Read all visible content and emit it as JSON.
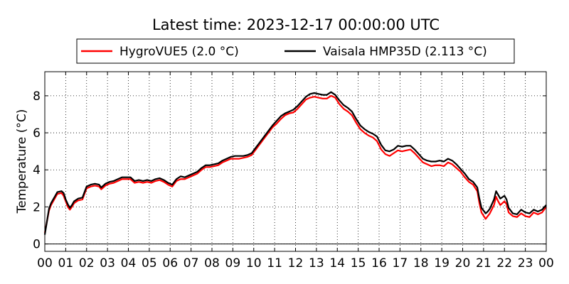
{
  "chart_data": {
    "type": "line",
    "title": "Latest time: 2023-12-17 00:00:00 UTC",
    "xlabel": "",
    "ylabel": "Temperature (°C)",
    "xlim": [
      0,
      24
    ],
    "ylim": [
      -0.4,
      9.3
    ],
    "grid": true,
    "legend_position": "top",
    "x_ticks": [
      "00",
      "01",
      "02",
      "03",
      "04",
      "05",
      "06",
      "07",
      "08",
      "09",
      "10",
      "11",
      "12",
      "13",
      "14",
      "15",
      "16",
      "17",
      "18",
      "19",
      "20",
      "21",
      "22",
      "23",
      "00"
    ],
    "y_ticks": [
      0,
      2,
      4,
      6,
      8
    ],
    "series": [
      {
        "name": "HygroVUE5 (2.0 °C)",
        "color": "#ff0000",
        "points": [
          [
            0.0,
            0.6
          ],
          [
            0.1,
            1.2
          ],
          [
            0.2,
            1.8
          ],
          [
            0.3,
            2.1
          ],
          [
            0.4,
            2.3
          ],
          [
            0.5,
            2.5
          ],
          [
            0.6,
            2.7
          ],
          [
            0.8,
            2.75
          ],
          [
            0.9,
            2.6
          ],
          [
            1.0,
            2.3
          ],
          [
            1.1,
            2.0
          ],
          [
            1.2,
            1.85
          ],
          [
            1.3,
            2.0
          ],
          [
            1.4,
            2.2
          ],
          [
            1.6,
            2.35
          ],
          [
            1.8,
            2.4
          ],
          [
            1.9,
            2.7
          ],
          [
            2.0,
            3.0
          ],
          [
            2.2,
            3.1
          ],
          [
            2.4,
            3.15
          ],
          [
            2.6,
            3.1
          ],
          [
            2.7,
            2.95
          ],
          [
            2.9,
            3.15
          ],
          [
            3.1,
            3.25
          ],
          [
            3.3,
            3.3
          ],
          [
            3.5,
            3.4
          ],
          [
            3.7,
            3.5
          ],
          [
            3.9,
            3.5
          ],
          [
            4.1,
            3.5
          ],
          [
            4.3,
            3.3
          ],
          [
            4.5,
            3.35
          ],
          [
            4.7,
            3.3
          ],
          [
            4.9,
            3.35
          ],
          [
            5.1,
            3.3
          ],
          [
            5.3,
            3.4
          ],
          [
            5.5,
            3.45
          ],
          [
            5.7,
            3.35
          ],
          [
            5.9,
            3.2
          ],
          [
            6.1,
            3.1
          ],
          [
            6.3,
            3.4
          ],
          [
            6.5,
            3.5
          ],
          [
            6.7,
            3.5
          ],
          [
            6.9,
            3.6
          ],
          [
            7.1,
            3.7
          ],
          [
            7.3,
            3.8
          ],
          [
            7.5,
            4.0
          ],
          [
            7.7,
            4.15
          ],
          [
            7.9,
            4.15
          ],
          [
            8.1,
            4.2
          ],
          [
            8.3,
            4.25
          ],
          [
            8.5,
            4.4
          ],
          [
            8.7,
            4.5
          ],
          [
            8.9,
            4.6
          ],
          [
            9.1,
            4.6
          ],
          [
            9.3,
            4.6
          ],
          [
            9.5,
            4.65
          ],
          [
            9.7,
            4.7
          ],
          [
            9.9,
            4.8
          ],
          [
            10.1,
            5.1
          ],
          [
            10.3,
            5.4
          ],
          [
            10.5,
            5.7
          ],
          [
            10.7,
            6.0
          ],
          [
            10.9,
            6.3
          ],
          [
            11.1,
            6.5
          ],
          [
            11.3,
            6.75
          ],
          [
            11.5,
            6.95
          ],
          [
            11.7,
            7.05
          ],
          [
            11.9,
            7.1
          ],
          [
            12.1,
            7.3
          ],
          [
            12.3,
            7.55
          ],
          [
            12.5,
            7.8
          ],
          [
            12.7,
            7.9
          ],
          [
            12.9,
            7.95
          ],
          [
            13.1,
            7.9
          ],
          [
            13.3,
            7.85
          ],
          [
            13.5,
            7.85
          ],
          [
            13.7,
            8.0
          ],
          [
            13.9,
            7.9
          ],
          [
            14.1,
            7.55
          ],
          [
            14.3,
            7.3
          ],
          [
            14.5,
            7.15
          ],
          [
            14.7,
            6.95
          ],
          [
            14.9,
            6.55
          ],
          [
            15.1,
            6.2
          ],
          [
            15.3,
            6.0
          ],
          [
            15.5,
            5.85
          ],
          [
            15.7,
            5.75
          ],
          [
            15.9,
            5.55
          ],
          [
            16.1,
            5.1
          ],
          [
            16.3,
            4.85
          ],
          [
            16.5,
            4.75
          ],
          [
            16.7,
            4.9
          ],
          [
            16.9,
            5.05
          ],
          [
            17.1,
            5.0
          ],
          [
            17.3,
            5.05
          ],
          [
            17.5,
            5.1
          ],
          [
            17.7,
            4.9
          ],
          [
            17.9,
            4.65
          ],
          [
            18.1,
            4.4
          ],
          [
            18.3,
            4.3
          ],
          [
            18.5,
            4.2
          ],
          [
            18.7,
            4.25
          ],
          [
            18.9,
            4.25
          ],
          [
            19.1,
            4.2
          ],
          [
            19.3,
            4.4
          ],
          [
            19.5,
            4.3
          ],
          [
            19.7,
            4.1
          ],
          [
            19.9,
            3.9
          ],
          [
            20.1,
            3.6
          ],
          [
            20.3,
            3.35
          ],
          [
            20.5,
            3.2
          ],
          [
            20.7,
            2.85
          ],
          [
            20.8,
            2.2
          ],
          [
            20.9,
            1.7
          ],
          [
            21.1,
            1.35
          ],
          [
            21.2,
            1.5
          ],
          [
            21.3,
            1.65
          ],
          [
            21.5,
            2.1
          ],
          [
            21.6,
            2.55
          ],
          [
            21.7,
            2.3
          ],
          [
            21.8,
            2.1
          ],
          [
            22.0,
            2.3
          ],
          [
            22.1,
            2.15
          ],
          [
            22.2,
            1.7
          ],
          [
            22.4,
            1.5
          ],
          [
            22.6,
            1.45
          ],
          [
            22.8,
            1.65
          ],
          [
            23.0,
            1.5
          ],
          [
            23.2,
            1.45
          ],
          [
            23.4,
            1.7
          ],
          [
            23.6,
            1.6
          ],
          [
            23.8,
            1.7
          ],
          [
            24.0,
            2.0
          ]
        ]
      },
      {
        "name": "Vaisala HMP35D (2.113 °C)",
        "color": "#000000",
        "points": [
          [
            0.0,
            0.5
          ],
          [
            0.1,
            1.2
          ],
          [
            0.2,
            1.9
          ],
          [
            0.3,
            2.2
          ],
          [
            0.4,
            2.4
          ],
          [
            0.5,
            2.6
          ],
          [
            0.6,
            2.8
          ],
          [
            0.8,
            2.85
          ],
          [
            0.9,
            2.75
          ],
          [
            1.0,
            2.4
          ],
          [
            1.1,
            2.15
          ],
          [
            1.2,
            1.95
          ],
          [
            1.3,
            2.1
          ],
          [
            1.4,
            2.3
          ],
          [
            1.6,
            2.45
          ],
          [
            1.8,
            2.5
          ],
          [
            1.9,
            2.8
          ],
          [
            2.0,
            3.1
          ],
          [
            2.2,
            3.2
          ],
          [
            2.4,
            3.25
          ],
          [
            2.6,
            3.2
          ],
          [
            2.7,
            3.05
          ],
          [
            2.9,
            3.25
          ],
          [
            3.1,
            3.35
          ],
          [
            3.3,
            3.4
          ],
          [
            3.5,
            3.5
          ],
          [
            3.7,
            3.6
          ],
          [
            3.9,
            3.6
          ],
          [
            4.1,
            3.6
          ],
          [
            4.3,
            3.4
          ],
          [
            4.5,
            3.45
          ],
          [
            4.7,
            3.4
          ],
          [
            4.9,
            3.45
          ],
          [
            5.1,
            3.4
          ],
          [
            5.3,
            3.5
          ],
          [
            5.5,
            3.55
          ],
          [
            5.7,
            3.45
          ],
          [
            5.9,
            3.3
          ],
          [
            6.1,
            3.2
          ],
          [
            6.3,
            3.5
          ],
          [
            6.5,
            3.65
          ],
          [
            6.7,
            3.6
          ],
          [
            6.9,
            3.7
          ],
          [
            7.1,
            3.8
          ],
          [
            7.3,
            3.9
          ],
          [
            7.5,
            4.1
          ],
          [
            7.7,
            4.25
          ],
          [
            7.9,
            4.25
          ],
          [
            8.1,
            4.3
          ],
          [
            8.3,
            4.35
          ],
          [
            8.5,
            4.5
          ],
          [
            8.7,
            4.6
          ],
          [
            8.9,
            4.7
          ],
          [
            9.1,
            4.75
          ],
          [
            9.3,
            4.75
          ],
          [
            9.5,
            4.75
          ],
          [
            9.7,
            4.8
          ],
          [
            9.9,
            4.9
          ],
          [
            10.1,
            5.2
          ],
          [
            10.3,
            5.5
          ],
          [
            10.5,
            5.8
          ],
          [
            10.7,
            6.1
          ],
          [
            10.9,
            6.4
          ],
          [
            11.1,
            6.65
          ],
          [
            11.3,
            6.9
          ],
          [
            11.5,
            7.05
          ],
          [
            11.7,
            7.15
          ],
          [
            11.9,
            7.25
          ],
          [
            12.1,
            7.45
          ],
          [
            12.3,
            7.7
          ],
          [
            12.5,
            7.95
          ],
          [
            12.7,
            8.1
          ],
          [
            12.9,
            8.15
          ],
          [
            13.1,
            8.1
          ],
          [
            13.3,
            8.05
          ],
          [
            13.5,
            8.05
          ],
          [
            13.7,
            8.2
          ],
          [
            13.9,
            8.05
          ],
          [
            14.1,
            7.75
          ],
          [
            14.3,
            7.5
          ],
          [
            14.5,
            7.35
          ],
          [
            14.7,
            7.15
          ],
          [
            14.9,
            6.75
          ],
          [
            15.1,
            6.4
          ],
          [
            15.3,
            6.2
          ],
          [
            15.5,
            6.05
          ],
          [
            15.7,
            5.95
          ],
          [
            15.9,
            5.8
          ],
          [
            16.1,
            5.35
          ],
          [
            16.3,
            5.05
          ],
          [
            16.5,
            5.0
          ],
          [
            16.7,
            5.1
          ],
          [
            16.9,
            5.3
          ],
          [
            17.1,
            5.25
          ],
          [
            17.3,
            5.3
          ],
          [
            17.5,
            5.3
          ],
          [
            17.7,
            5.1
          ],
          [
            17.9,
            4.85
          ],
          [
            18.1,
            4.6
          ],
          [
            18.3,
            4.5
          ],
          [
            18.5,
            4.45
          ],
          [
            18.7,
            4.45
          ],
          [
            18.9,
            4.5
          ],
          [
            19.1,
            4.45
          ],
          [
            19.3,
            4.6
          ],
          [
            19.5,
            4.5
          ],
          [
            19.7,
            4.3
          ],
          [
            19.9,
            4.05
          ],
          [
            20.1,
            3.8
          ],
          [
            20.3,
            3.5
          ],
          [
            20.5,
            3.35
          ],
          [
            20.7,
            3.05
          ],
          [
            20.8,
            2.45
          ],
          [
            20.9,
            1.95
          ],
          [
            21.1,
            1.65
          ],
          [
            21.2,
            1.75
          ],
          [
            21.3,
            1.9
          ],
          [
            21.5,
            2.4
          ],
          [
            21.6,
            2.85
          ],
          [
            21.7,
            2.65
          ],
          [
            21.8,
            2.45
          ],
          [
            22.0,
            2.6
          ],
          [
            22.1,
            2.4
          ],
          [
            22.2,
            1.95
          ],
          [
            22.4,
            1.65
          ],
          [
            22.6,
            1.6
          ],
          [
            22.8,
            1.85
          ],
          [
            23.0,
            1.7
          ],
          [
            23.2,
            1.65
          ],
          [
            23.4,
            1.85
          ],
          [
            23.6,
            1.75
          ],
          [
            23.8,
            1.85
          ],
          [
            24.0,
            2.1
          ]
        ]
      }
    ]
  }
}
